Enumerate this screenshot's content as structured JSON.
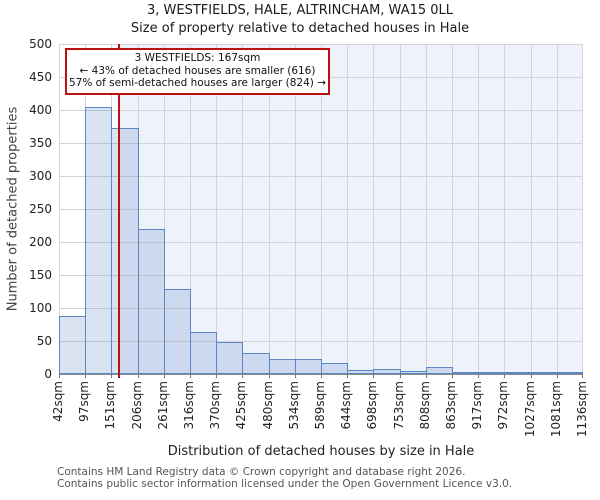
{
  "title": "3, WESTFIELDS, HALE, ALTRINCHAM, WA15 0LL",
  "subtitle": "Size of property relative to detached houses in Hale",
  "annotation": {
    "line1": "3 WESTFIELDS: 167sqm",
    "line2": "← 43% of detached houses are smaller (616)",
    "line3": "57% of semi-detached houses are larger (824) →"
  },
  "chart_data": {
    "type": "bar",
    "title": "3, WESTFIELDS, HALE, ALTRINCHAM, WA15 0LL",
    "subtitle": "Size of property relative to detached houses in Hale",
    "xlabel": "Distribution of detached houses by size in Hale",
    "ylabel": "Number of detached properties",
    "x_tick_labels": [
      "42sqm",
      "97sqm",
      "151sqm",
      "206sqm",
      "261sqm",
      "316sqm",
      "370sqm",
      "425sqm",
      "480sqm",
      "534sqm",
      "589sqm",
      "644sqm",
      "698sqm",
      "753sqm",
      "808sqm",
      "863sqm",
      "917sqm",
      "972sqm",
      "1027sqm",
      "1081sqm",
      "1136sqm"
    ],
    "bin_edges_sqm": [
      42,
      97,
      151,
      206,
      261,
      316,
      370,
      425,
      480,
      534,
      589,
      644,
      698,
      753,
      808,
      863,
      917,
      972,
      1027,
      1081,
      1136
    ],
    "values": [
      88,
      405,
      372,
      220,
      129,
      64,
      49,
      32,
      23,
      22,
      16,
      6,
      8,
      5,
      10,
      1,
      1,
      1,
      1,
      1
    ],
    "ylim": [
      0,
      500
    ],
    "ytick_step": 50,
    "grid": true,
    "marker_value_sqm": 167,
    "x_range_sqm": [
      42,
      1136
    ],
    "colors": {
      "bar_fill": "rgba(91,135,197,0.23)",
      "bar_border": "#5b87c5",
      "marker_line": "#bb1111",
      "annotation_border": "#bb1111",
      "shade_region": "#eef3fb",
      "gridline": "#d4d4d6"
    }
  },
  "footer": {
    "line1": "Contains HM Land Registry data © Crown copyright and database right 2026.",
    "line2": "Contains public sector information licensed under the Open Government Licence v3.0."
  }
}
